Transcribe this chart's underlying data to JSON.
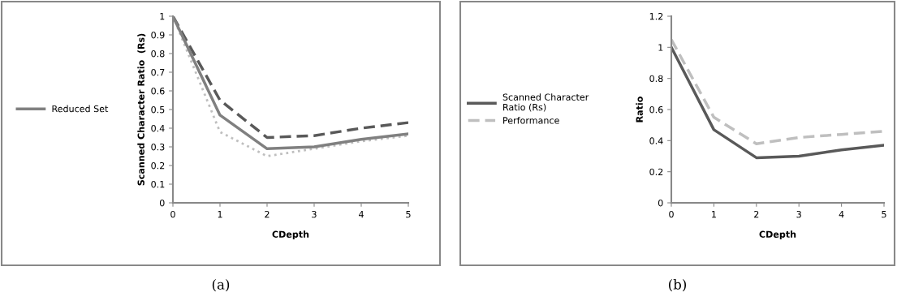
{
  "chart_data": [
    {
      "type": "line",
      "x": [
        0,
        1,
        2,
        3,
        4,
        5
      ],
      "xlabel": "CDepth",
      "ylabel": "Scanned Character Ratio  (Rs)",
      "xlim": [
        0,
        5
      ],
      "xticks": [
        0,
        1,
        2,
        3,
        4,
        5
      ],
      "ylim": [
        0,
        1
      ],
      "yticks": [
        0,
        0.1,
        0.2,
        0.3,
        0.4,
        0.5,
        0.6,
        0.7,
        0.8,
        0.9,
        1
      ],
      "grid": false,
      "legend": "left",
      "marker": "none",
      "annotations": [
        "(a)"
      ],
      "series": [
        {
          "color": "#595959",
          "line_style": "dashed",
          "values": [
            1,
            0.55,
            0.35,
            0.36,
            0.4,
            0.43
          ]
        },
        {
          "color": "#bfbfbf",
          "line_style": "dotted",
          "values": [
            1,
            0.38,
            0.25,
            0.29,
            0.33,
            0.36
          ]
        },
        {
          "name": "Reduced Set",
          "color": "#808080",
          "line_style": "solid",
          "values": [
            1,
            0.47,
            0.29,
            0.3,
            0.34,
            0.37
          ]
        }
      ]
    },
    {
      "type": "line",
      "x": [
        0,
        1,
        2,
        3,
        4,
        5
      ],
      "xlabel": "CDepth",
      "ylabel": "Ratio",
      "xlim": [
        0,
        5
      ],
      "xticks": [
        0,
        1,
        2,
        3,
        4,
        5
      ],
      "ylim": [
        0,
        1.2
      ],
      "yticks": [
        0,
        0.2,
        0.4,
        0.6,
        0.8,
        1,
        1.2
      ],
      "grid": false,
      "legend": "left",
      "marker": "none",
      "annotations": [
        "(b)"
      ],
      "series": [
        {
          "name": "Scanned Character\nRatio (Rs)",
          "color": "#595959",
          "line_style": "solid",
          "values": [
            1,
            0.47,
            0.29,
            0.3,
            0.34,
            0.37
          ]
        },
        {
          "name": "Performance",
          "color": "#bfbfbf",
          "line_style": "dashed",
          "values": [
            1.05,
            0.55,
            0.38,
            0.42,
            0.44,
            0.46
          ]
        }
      ]
    }
  ]
}
